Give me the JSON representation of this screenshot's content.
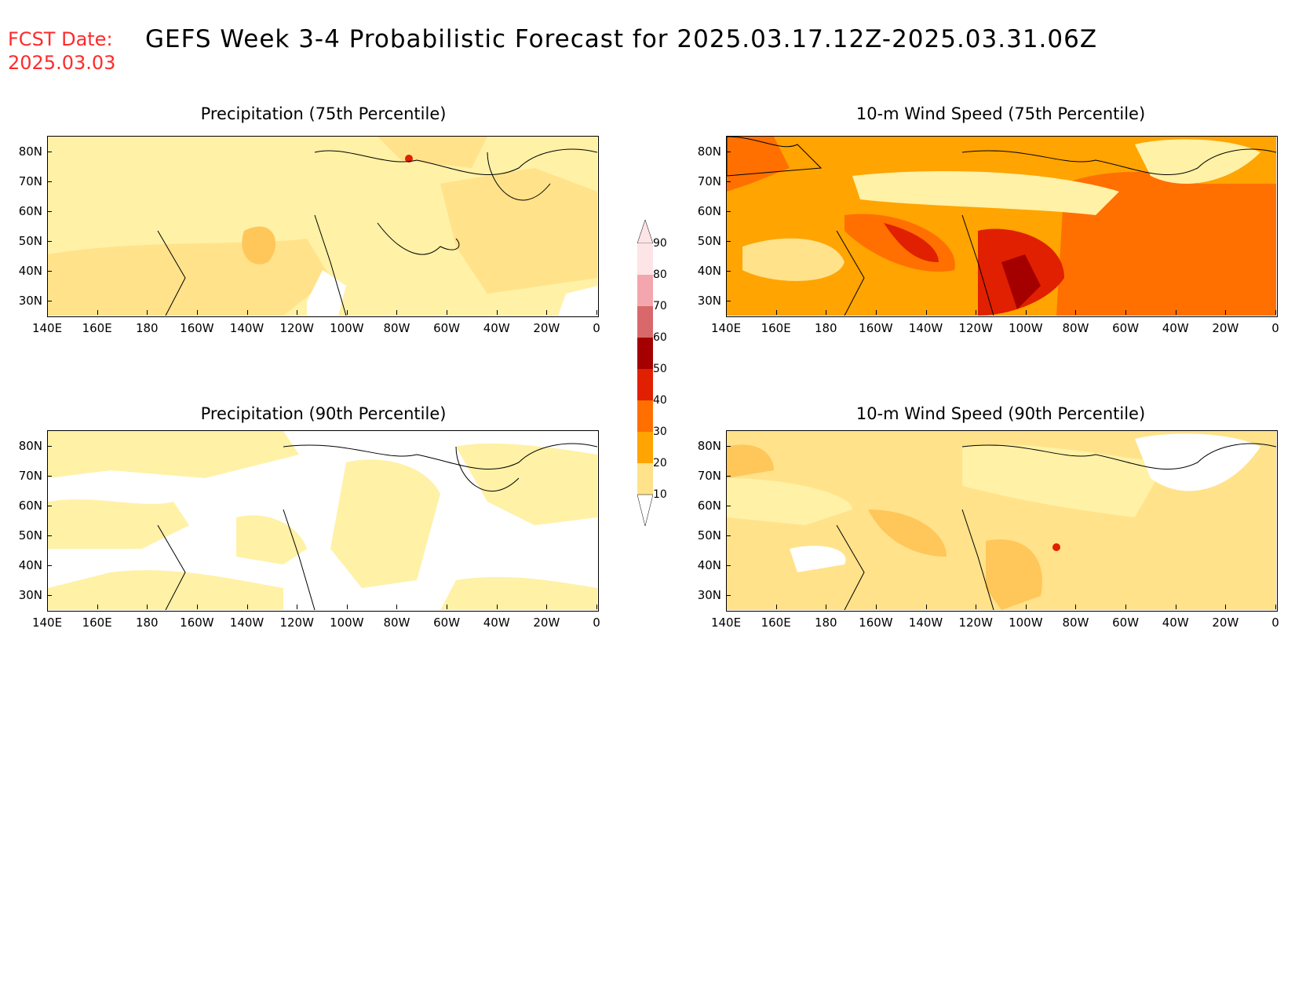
{
  "header": {
    "fcst_label": "FCST Date:",
    "fcst_date": "2025.03.03",
    "title": "GEFS Week 3-4 Probabilistic Forecast for 2025.03.17.12Z-2025.03.31.06Z"
  },
  "panels": [
    {
      "id": "precip75",
      "title": "Precipitation (75th Percentile)"
    },
    {
      "id": "wind75",
      "title": "10-m Wind Speed (75th Percentile)"
    },
    {
      "id": "precip90",
      "title": "Precipitation (90th Percentile)"
    },
    {
      "id": "wind90",
      "title": "10-m Wind Speed (90th Percentile)"
    }
  ],
  "axes": {
    "lat_labels": [
      "80N",
      "70N",
      "60N",
      "50N",
      "40N",
      "30N"
    ],
    "lon_labels": [
      "140E",
      "160E",
      "180",
      "160W",
      "140W",
      "120W",
      "100W",
      "80W",
      "60W",
      "40W",
      "20W",
      "0"
    ]
  },
  "colorbar": {
    "levels": [
      "10",
      "20",
      "30",
      "40",
      "50",
      "60",
      "70",
      "80",
      "90"
    ],
    "colors": [
      "#fff6b8",
      "#ffe28a",
      "#ffa400",
      "#ff7000",
      "#e02000",
      "#a50000",
      "#d9686a",
      "#f4a6ae",
      "#fde4e6"
    ]
  }
}
